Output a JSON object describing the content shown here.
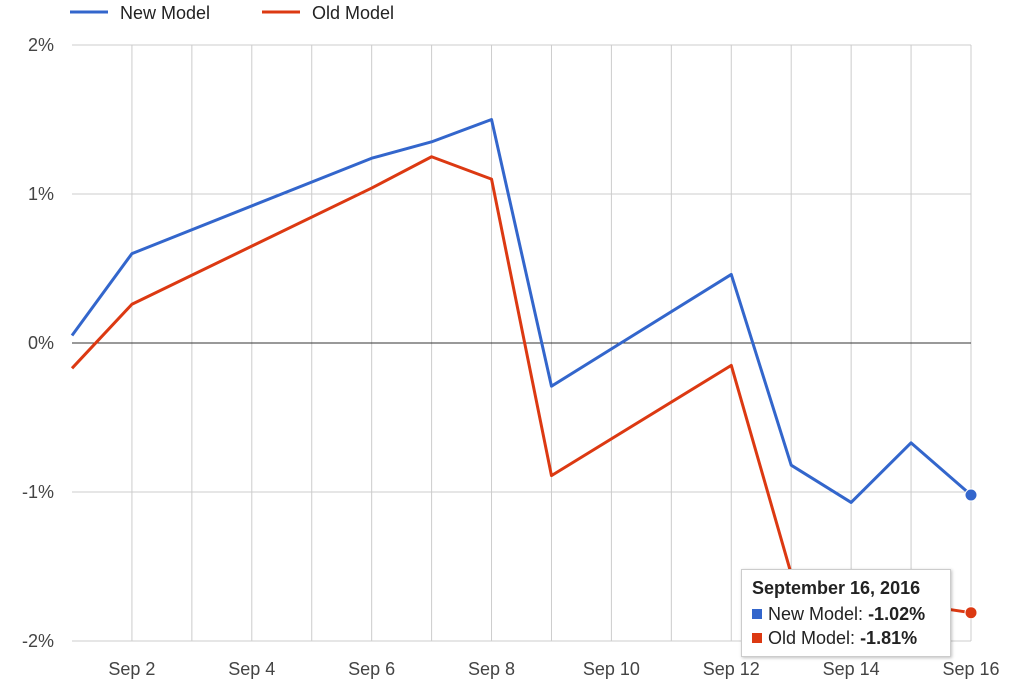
{
  "chart_data": {
    "type": "line",
    "title": "",
    "xlabel": "",
    "ylabel": "",
    "x_range": [
      "2016-09-01",
      "2016-09-16"
    ],
    "x_ticks": [
      {
        "date": "2016-09-02",
        "label": "Sep 2"
      },
      {
        "date": "2016-09-04",
        "label": "Sep 4"
      },
      {
        "date": "2016-09-06",
        "label": "Sep 6"
      },
      {
        "date": "2016-09-08",
        "label": "Sep 8"
      },
      {
        "date": "2016-09-10",
        "label": "Sep 10"
      },
      {
        "date": "2016-09-12",
        "label": "Sep 12"
      },
      {
        "date": "2016-09-14",
        "label": "Sep 14"
      },
      {
        "date": "2016-09-16",
        "label": "Sep 16"
      }
    ],
    "ylim": [
      -2,
      2
    ],
    "y_ticks": [
      {
        "value": 2,
        "label": "2%"
      },
      {
        "value": 1,
        "label": "1%"
      },
      {
        "value": 0,
        "label": "0%"
      },
      {
        "value": -1,
        "label": "-1%"
      },
      {
        "value": -2,
        "label": "-2%"
      }
    ],
    "grid": true,
    "legend_position": "top-left",
    "x": [
      "2016-09-01",
      "2016-09-02",
      "2016-09-06",
      "2016-09-07",
      "2016-09-08",
      "2016-09-09",
      "2016-09-12",
      "2016-09-13",
      "2016-09-14",
      "2016-09-15",
      "2016-09-16"
    ],
    "series": [
      {
        "name": "New Model",
        "color": "#3366cc",
        "values": [
          0.05,
          0.6,
          1.24,
          1.35,
          1.5,
          -0.29,
          0.46,
          -0.82,
          -1.07,
          -0.67,
          -1.02
        ]
      },
      {
        "name": "Old Model",
        "color": "#dc3912",
        "values": [
          -0.17,
          0.26,
          1.04,
          1.25,
          1.1,
          -0.89,
          -0.15,
          -1.55,
          -1.65,
          -1.75,
          -1.81
        ]
      }
    ],
    "tooltip": {
      "title": "September 16, 2016",
      "rows": [
        {
          "label": "New Model:",
          "value": "-1.02%",
          "color": "#3366cc"
        },
        {
          "label": "Old Model:",
          "value": "-1.81%",
          "color": "#dc3912"
        }
      ]
    }
  }
}
